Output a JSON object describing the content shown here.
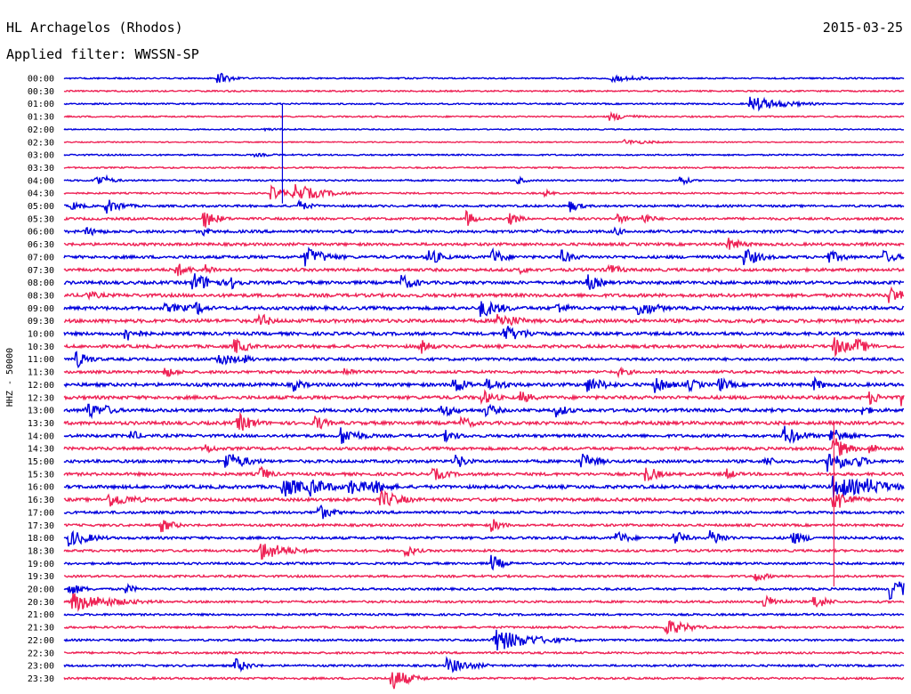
{
  "header": {
    "station": "HL Archagelos (Rhodos)",
    "date": "2015-03-25",
    "filter": "Applied filter: WWSSN-SP"
  },
  "chart_data": {
    "type": "line",
    "title": "HL Archagelos (Rhodos)",
    "subtitle": "Applied filter: WWSSN-SP",
    "ylabel": "HHZ - 50000",
    "grid": false,
    "colors": [
      "#0000dd",
      "#ee2255"
    ],
    "row_labels": [
      "00:00",
      "00:30",
      "01:00",
      "01:30",
      "02:00",
      "02:30",
      "03:00",
      "03:30",
      "04:00",
      "04:30",
      "05:00",
      "05:30",
      "06:00",
      "06:30",
      "07:00",
      "07:30",
      "08:00",
      "08:30",
      "09:00",
      "09:30",
      "10:00",
      "10:30",
      "11:00",
      "11:30",
      "12:00",
      "12:30",
      "13:00",
      "13:30",
      "14:00",
      "14:30",
      "15:00",
      "15:30",
      "16:00",
      "16:30",
      "17:00",
      "17:30",
      "18:00",
      "18:30",
      "19:00",
      "19:30",
      "20:00",
      "20:30",
      "21:00",
      "21:30",
      "22:00",
      "22:30",
      "23:00",
      "23:30"
    ],
    "row_minutes": 30,
    "noise": [
      0.8,
      0.8,
      0.8,
      0.8,
      0.6,
      0.6,
      0.8,
      0.8,
      0.9,
      0.9,
      1.2,
      1.3,
      1.5,
      1.5,
      1.6,
      1.6,
      1.7,
      1.8,
      1.8,
      1.9,
      1.7,
      1.7,
      1.5,
      1.5,
      1.8,
      1.8,
      1.8,
      1.8,
      1.6,
      1.6,
      1.6,
      1.6,
      1.8,
      1.7,
      1.4,
      1.3,
      1.4,
      1.3,
      1.2,
      1.2,
      1.2,
      1.2,
      1.1,
      1.1,
      1.1,
      1.1,
      1.1,
      1.1
    ],
    "events": [
      {
        "row": 0,
        "min": 5.5,
        "amp": 7,
        "dur": 0.5
      },
      {
        "row": 0,
        "min": 19.5,
        "amp": 4,
        "dur": 1.4
      },
      {
        "row": 2,
        "min": 24.5,
        "amp": 9,
        "dur": 1.2
      },
      {
        "row": 3,
        "min": 19.5,
        "amp": 5,
        "dur": 0.8
      },
      {
        "row": 4,
        "min": 7.2,
        "amp": 1.5,
        "dur": 1.5
      },
      {
        "row": 5,
        "min": 20.0,
        "amp": 3,
        "dur": 1.2
      },
      {
        "row": 6,
        "min": 6.8,
        "amp": 2,
        "dur": 1.2
      },
      {
        "row": 8,
        "min": 1.1,
        "amp": 8,
        "dur": 0.5
      },
      {
        "row": 8,
        "min": 1.5,
        "amp": 5,
        "dur": 0.3
      },
      {
        "row": 8,
        "min": 16.2,
        "amp": 5,
        "dur": 0.3
      },
      {
        "row": 8,
        "min": 22.0,
        "amp": 7,
        "dur": 0.3
      },
      {
        "row": 9,
        "min": 7.4,
        "amp": 8,
        "dur": 0.6
      },
      {
        "row": 9,
        "min": 8.2,
        "amp": 11,
        "dur": 1.0
      },
      {
        "row": 9,
        "min": 17.2,
        "amp": 4,
        "dur": 0.3
      },
      {
        "row": 10,
        "min": 0.3,
        "amp": 5,
        "dur": 0.5
      },
      {
        "row": 10,
        "min": 1.5,
        "amp": 9,
        "dur": 0.6
      },
      {
        "row": 10,
        "min": 8.4,
        "amp": 6,
        "dur": 0.5
      },
      {
        "row": 10,
        "min": 18.1,
        "amp": 7,
        "dur": 0.4
      },
      {
        "row": 11,
        "min": 5.0,
        "amp": 11,
        "dur": 0.5
      },
      {
        "row": 11,
        "min": 14.4,
        "amp": 9,
        "dur": 0.3
      },
      {
        "row": 11,
        "min": 15.9,
        "amp": 8,
        "dur": 0.4
      },
      {
        "row": 11,
        "min": 19.8,
        "amp": 6,
        "dur": 0.4
      },
      {
        "row": 11,
        "min": 20.7,
        "amp": 7,
        "dur": 0.4
      },
      {
        "row": 12,
        "min": 0.8,
        "amp": 5,
        "dur": 0.7
      },
      {
        "row": 12,
        "min": 5.0,
        "amp": 5,
        "dur": 0.3
      },
      {
        "row": 12,
        "min": 16.9,
        "amp": 4,
        "dur": 0.3
      },
      {
        "row": 12,
        "min": 19.7,
        "amp": 5,
        "dur": 0.4
      },
      {
        "row": 13,
        "min": 23.7,
        "amp": 8,
        "dur": 0.6
      },
      {
        "row": 13,
        "min": 28.6,
        "amp": 3,
        "dur": 0.5
      },
      {
        "row": 14,
        "min": 8.6,
        "amp": 12,
        "dur": 0.8
      },
      {
        "row": 14,
        "min": 13.0,
        "amp": 11,
        "dur": 0.5
      },
      {
        "row": 14,
        "min": 15.3,
        "amp": 10,
        "dur": 0.5
      },
      {
        "row": 14,
        "min": 17.8,
        "amp": 8,
        "dur": 0.5
      },
      {
        "row": 14,
        "min": 24.3,
        "amp": 11,
        "dur": 0.6
      },
      {
        "row": 14,
        "min": 27.3,
        "amp": 8,
        "dur": 0.6
      },
      {
        "row": 14,
        "min": 29.3,
        "amp": 8,
        "dur": 0.5
      },
      {
        "row": 15,
        "min": 4.0,
        "amp": 9,
        "dur": 0.5
      },
      {
        "row": 15,
        "min": 5.0,
        "amp": 7,
        "dur": 0.5
      },
      {
        "row": 15,
        "min": 16.3,
        "amp": 5,
        "dur": 0.4
      },
      {
        "row": 15,
        "min": 19.4,
        "amp": 8,
        "dur": 0.5
      },
      {
        "row": 16,
        "min": 4.6,
        "amp": 12,
        "dur": 0.8
      },
      {
        "row": 16,
        "min": 12.0,
        "amp": 10,
        "dur": 0.6
      },
      {
        "row": 16,
        "min": 18.7,
        "amp": 10,
        "dur": 0.5
      },
      {
        "row": 16,
        "min": 6.0,
        "amp": 8,
        "dur": 0.4
      },
      {
        "row": 17,
        "min": 0.8,
        "amp": 5,
        "dur": 0.8
      },
      {
        "row": 17,
        "min": 29.5,
        "amp": 11,
        "dur": 0.5
      },
      {
        "row": 18,
        "min": 4.7,
        "amp": 11,
        "dur": 0.3
      },
      {
        "row": 18,
        "min": 14.9,
        "amp": 11,
        "dur": 0.8
      },
      {
        "row": 18,
        "min": 17.6,
        "amp": 8,
        "dur": 0.5
      },
      {
        "row": 18,
        "min": 20.5,
        "amp": 11,
        "dur": 0.7
      },
      {
        "row": 18,
        "min": 3.6,
        "amp": 5,
        "dur": 2.0
      },
      {
        "row": 19,
        "min": 7.0,
        "amp": 10,
        "dur": 0.4
      },
      {
        "row": 19,
        "min": 15.5,
        "amp": 10,
        "dur": 0.8
      },
      {
        "row": 20,
        "min": 2.2,
        "amp": 10,
        "dur": 0.5
      },
      {
        "row": 20,
        "min": 15.7,
        "amp": 12,
        "dur": 0.6
      },
      {
        "row": 20,
        "min": 16.0,
        "amp": 7,
        "dur": 1.0
      },
      {
        "row": 21,
        "min": 6.1,
        "amp": 10,
        "dur": 0.5
      },
      {
        "row": 21,
        "min": 12.7,
        "amp": 10,
        "dur": 0.4
      },
      {
        "row": 21,
        "min": 27.5,
        "amp": 12,
        "dur": 0.6
      },
      {
        "row": 21,
        "min": 28.3,
        "amp": 10,
        "dur": 0.5
      },
      {
        "row": 22,
        "min": 0.4,
        "amp": 11,
        "dur": 0.5
      },
      {
        "row": 22,
        "min": 5.5,
        "amp": 8,
        "dur": 0.8
      },
      {
        "row": 22,
        "min": 6.5,
        "amp": 5,
        "dur": 0.4
      },
      {
        "row": 23,
        "min": 3.6,
        "amp": 7,
        "dur": 0.5
      },
      {
        "row": 23,
        "min": 10.0,
        "amp": 6,
        "dur": 0.5
      },
      {
        "row": 23,
        "min": 19.8,
        "amp": 5,
        "dur": 0.6
      },
      {
        "row": 24,
        "min": 8.2,
        "amp": 8,
        "dur": 0.4
      },
      {
        "row": 24,
        "min": 13.9,
        "amp": 12,
        "dur": 0.5
      },
      {
        "row": 24,
        "min": 15.1,
        "amp": 7,
        "dur": 1.0
      },
      {
        "row": 24,
        "min": 18.7,
        "amp": 9,
        "dur": 0.8
      },
      {
        "row": 24,
        "min": 21.1,
        "amp": 10,
        "dur": 0.6
      },
      {
        "row": 24,
        "min": 22.3,
        "amp": 8,
        "dur": 0.5
      },
      {
        "row": 24,
        "min": 23.4,
        "amp": 9,
        "dur": 0.5
      },
      {
        "row": 24,
        "min": 26.8,
        "amp": 8,
        "dur": 0.4
      },
      {
        "row": 25,
        "min": 14.9,
        "amp": 10,
        "dur": 0.5
      },
      {
        "row": 25,
        "min": 16.3,
        "amp": 8,
        "dur": 0.5
      },
      {
        "row": 25,
        "min": 28.8,
        "amp": 8,
        "dur": 0.5
      },
      {
        "row": 25,
        "min": 29.9,
        "amp": 10,
        "dur": 0.4
      },
      {
        "row": 26,
        "min": 0.8,
        "amp": 11,
        "dur": 0.6
      },
      {
        "row": 26,
        "min": 1.5,
        "amp": 6,
        "dur": 0.5
      },
      {
        "row": 26,
        "min": 13.5,
        "amp": 8,
        "dur": 0.6
      },
      {
        "row": 26,
        "min": 15.1,
        "amp": 8,
        "dur": 0.5
      },
      {
        "row": 26,
        "min": 17.6,
        "amp": 8,
        "dur": 0.5
      },
      {
        "row": 26,
        "min": 28.5,
        "amp": 6,
        "dur": 0.5
      },
      {
        "row": 27,
        "min": 6.2,
        "amp": 12,
        "dur": 0.6
      },
      {
        "row": 27,
        "min": 9.0,
        "amp": 10,
        "dur": 0.4
      },
      {
        "row": 27,
        "min": 14.2,
        "amp": 8,
        "dur": 0.5
      },
      {
        "row": 28,
        "min": 2.4,
        "amp": 7,
        "dur": 0.4
      },
      {
        "row": 28,
        "min": 9.9,
        "amp": 11,
        "dur": 0.7
      },
      {
        "row": 28,
        "min": 13.6,
        "amp": 7,
        "dur": 0.6
      },
      {
        "row": 28,
        "min": 25.7,
        "amp": 12,
        "dur": 0.7
      },
      {
        "row": 28,
        "min": 27.4,
        "amp": 11,
        "dur": 0.6
      },
      {
        "row": 29,
        "min": 5.1,
        "amp": 6,
        "dur": 0.4
      },
      {
        "row": 29,
        "min": 27.5,
        "amp": 14,
        "dur": 0.5
      },
      {
        "row": 29,
        "min": 28.8,
        "amp": 7,
        "dur": 0.4
      },
      {
        "row": 30,
        "min": 5.8,
        "amp": 11,
        "dur": 0.8
      },
      {
        "row": 30,
        "min": 14.0,
        "amp": 10,
        "dur": 0.4
      },
      {
        "row": 30,
        "min": 18.5,
        "amp": 10,
        "dur": 0.6
      },
      {
        "row": 30,
        "min": 25.0,
        "amp": 7,
        "dur": 0.5
      },
      {
        "row": 30,
        "min": 27.3,
        "amp": 13,
        "dur": 0.8
      },
      {
        "row": 30,
        "min": 28.3,
        "amp": 8,
        "dur": 0.5
      },
      {
        "row": 31,
        "min": 7.0,
        "amp": 10,
        "dur": 0.4
      },
      {
        "row": 31,
        "min": 13.2,
        "amp": 8,
        "dur": 0.6
      },
      {
        "row": 31,
        "min": 20.8,
        "amp": 10,
        "dur": 0.5
      },
      {
        "row": 31,
        "min": 23.6,
        "amp": 8,
        "dur": 0.4
      },
      {
        "row": 32,
        "min": 7.8,
        "amp": 12,
        "dur": 1.0
      },
      {
        "row": 32,
        "min": 8.8,
        "amp": 11,
        "dur": 0.8
      },
      {
        "row": 32,
        "min": 10.2,
        "amp": 10,
        "dur": 0.8
      },
      {
        "row": 32,
        "min": 11.0,
        "amp": 9,
        "dur": 0.7
      },
      {
        "row": 32,
        "min": 27.5,
        "amp": 15,
        "dur": 1.2
      },
      {
        "row": 32,
        "min": 28.7,
        "amp": 10,
        "dur": 1.0
      },
      {
        "row": 33,
        "min": 1.6,
        "amp": 9,
        "dur": 1.0
      },
      {
        "row": 33,
        "min": 11.3,
        "amp": 11,
        "dur": 0.8
      },
      {
        "row": 33,
        "min": 27.5,
        "amp": 14,
        "dur": 0.6
      },
      {
        "row": 34,
        "min": 9.1,
        "amp": 10,
        "dur": 0.5
      },
      {
        "row": 35,
        "min": 3.5,
        "amp": 8,
        "dur": 0.5
      },
      {
        "row": 35,
        "min": 15.3,
        "amp": 8,
        "dur": 0.4
      },
      {
        "row": 36,
        "min": 0.2,
        "amp": 10,
        "dur": 0.8
      },
      {
        "row": 36,
        "min": 19.7,
        "amp": 9,
        "dur": 0.5
      },
      {
        "row": 36,
        "min": 21.8,
        "amp": 10,
        "dur": 0.4
      },
      {
        "row": 36,
        "min": 23.1,
        "amp": 10,
        "dur": 0.5
      },
      {
        "row": 36,
        "min": 26.0,
        "amp": 8,
        "dur": 0.6
      },
      {
        "row": 37,
        "min": 7.0,
        "amp": 12,
        "dur": 1.0
      },
      {
        "row": 37,
        "min": 12.2,
        "amp": 8,
        "dur": 0.4
      },
      {
        "row": 38,
        "min": 15.3,
        "amp": 10,
        "dur": 0.4
      },
      {
        "row": 39,
        "min": 24.7,
        "amp": 6,
        "dur": 0.5
      },
      {
        "row": 40,
        "min": 0.2,
        "amp": 8,
        "dur": 0.5
      },
      {
        "row": 40,
        "min": 2.2,
        "amp": 6,
        "dur": 0.4
      },
      {
        "row": 40,
        "min": 29.5,
        "amp": 12,
        "dur": 1.0
      },
      {
        "row": 41,
        "min": 0.3,
        "amp": 11,
        "dur": 1.5
      },
      {
        "row": 41,
        "min": 25.0,
        "amp": 8,
        "dur": 0.6
      },
      {
        "row": 41,
        "min": 26.8,
        "amp": 9,
        "dur": 0.5
      },
      {
        "row": 43,
        "min": 21.5,
        "amp": 10,
        "dur": 0.8
      },
      {
        "row": 44,
        "min": 15.3,
        "amp": 14,
        "dur": 1.4
      },
      {
        "row": 46,
        "min": 6.1,
        "amp": 9,
        "dur": 0.5
      },
      {
        "row": 46,
        "min": 13.7,
        "amp": 9,
        "dur": 0.9
      },
      {
        "row": 47,
        "min": 11.7,
        "amp": 14,
        "dur": 0.6
      }
    ],
    "spikes": [
      {
        "row": 2,
        "min": 7.8,
        "length_rows": 7.8
      },
      {
        "row": 27,
        "min": 27.5,
        "length_rows": 12.8
      }
    ]
  }
}
